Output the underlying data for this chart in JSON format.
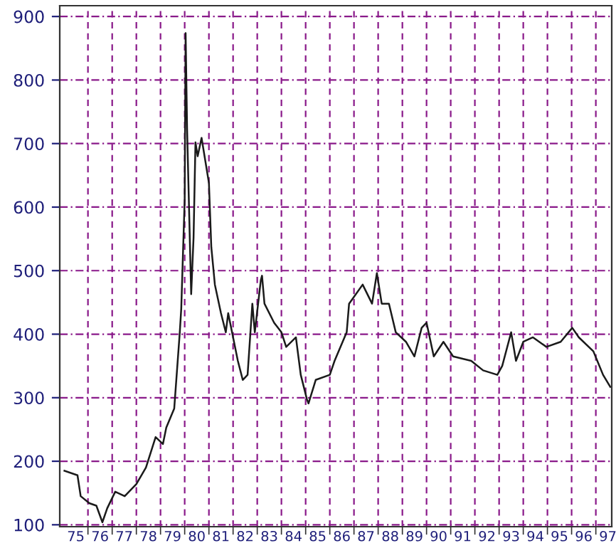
{
  "chart_data": {
    "type": "line",
    "grid": true,
    "marker": "none",
    "line_style": "solid",
    "xlim": [
      "1974-11-01",
      "1997-08-29"
    ],
    "ylim": [
      97,
      917
    ],
    "yticks": [
      100,
      200,
      300,
      400,
      500,
      600,
      700,
      800,
      900
    ],
    "xticks": [
      {
        "value": "1975-07-02",
        "label": "75"
      },
      {
        "value": "1976-07-02",
        "label": "76"
      },
      {
        "value": "1977-07-02",
        "label": "77"
      },
      {
        "value": "1978-07-02",
        "label": "78"
      },
      {
        "value": "1979-07-02",
        "label": "79"
      },
      {
        "value": "1980-07-02",
        "label": "80"
      },
      {
        "value": "1981-07-02",
        "label": "81"
      },
      {
        "value": "1982-07-02",
        "label": "82"
      },
      {
        "value": "1983-07-02",
        "label": "83"
      },
      {
        "value": "1984-07-02",
        "label": "84"
      },
      {
        "value": "1985-07-02",
        "label": "85"
      },
      {
        "value": "1986-07-02",
        "label": "86"
      },
      {
        "value": "1987-07-02",
        "label": "87"
      },
      {
        "value": "1988-07-02",
        "label": "88"
      },
      {
        "value": "1989-07-02",
        "label": "89"
      },
      {
        "value": "1990-07-02",
        "label": "90"
      },
      {
        "value": "1991-07-02",
        "label": "91"
      },
      {
        "value": "1992-07-02",
        "label": "92"
      },
      {
        "value": "1993-07-02",
        "label": "93"
      },
      {
        "value": "1994-07-02",
        "label": "94"
      },
      {
        "value": "1995-07-02",
        "label": "95"
      },
      {
        "value": "1996-07-02",
        "label": "96"
      },
      {
        "value": "1997-07-02",
        "label": "97"
      },
      {
        "value": "1976",
        "label": null
      },
      {
        "value": "1977",
        "label": null
      },
      {
        "value": "1978",
        "label": null
      },
      {
        "value": "1979",
        "label": null
      },
      {
        "value": "1980",
        "label": null
      },
      {
        "value": "1981",
        "label": null
      },
      {
        "value": "1982",
        "label": null
      },
      {
        "value": "1983",
        "label": null
      },
      {
        "value": "1984",
        "label": null
      },
      {
        "value": "1985",
        "label": null
      },
      {
        "value": "1986",
        "label": null
      },
      {
        "value": "1987",
        "label": null
      },
      {
        "value": "1988",
        "label": null
      },
      {
        "value": "1989",
        "label": null
      },
      {
        "value": "1990",
        "label": null
      },
      {
        "value": "1991",
        "label": null
      },
      {
        "value": "1992",
        "label": null
      },
      {
        "value": "1993",
        "label": null
      },
      {
        "value": "1994",
        "label": null
      },
      {
        "value": "1995",
        "label": null
      },
      {
        "value": "1996",
        "label": null
      },
      {
        "value": "1997",
        "label": null
      }
    ],
    "series": [
      {
        "color": "#1a1a1a",
        "x": [
          "1975-01-11",
          "1975-07-27",
          "1975-09-13",
          "1976-01-22",
          "1976-05-07",
          "1976-08-06",
          "1976-10-18",
          "1977-02-16",
          "1977-07-09",
          "1978-01-01",
          "1978-05-26",
          "1978-10-19",
          "1979-02-06",
          "1979-03-29",
          "1979-07-27",
          "1979-10-19",
          "1979-11-10",
          "1980-01-01",
          "1980-01-15",
          "1980-02-06",
          "1980-04-08",
          "1980-05-14",
          "1980-06-12",
          "1980-07-15",
          "1980-09-12",
          "1981-01-01",
          "1981-02-06",
          "1981-04-01",
          "1981-07-02",
          "1981-09-13",
          "1981-10-19",
          "1982-03-14",
          "1982-05-27",
          "1982-08-08",
          "1982-10-19",
          "1982-11-25",
          "1983-02-24",
          "1983-03-14",
          "1983-04-20",
          "1983-09-13",
          "1984-01-01",
          "1984-03-13",
          "1984-08-07",
          "1984-10-19",
          "1985-01-19",
          "1985-02-13",
          "1985-06-02",
          "1986-01-01",
          "1986-03-14",
          "1986-09-13",
          "1986-10-19",
          "1987-05-12",
          "1987-10-01",
          "1987-12-13",
          "1988-02-24",
          "1988-06-12",
          "1988-09-23",
          "1989-02-24",
          "1989-07-02",
          "1989-10-19",
          "1990-01-01",
          "1990-04-20",
          "1990-09-13",
          "1991-02-06",
          "1991-11-07",
          "1992-05-04",
          "1992-12-05",
          "1993-02-17",
          "1993-07-02",
          "1993-09-13",
          "1994-01-01",
          "1994-05-27",
          "1994-12-16",
          "1995-07-20",
          "1996-01-11",
          "1996-04-19",
          "1996-11-25",
          "1997-04-20",
          "1997-08-07"
        ],
        "values": [
          185,
          178,
          145,
          134,
          130,
          104,
          126,
          152,
          145,
          164,
          190,
          238,
          227,
          253,
          283,
          403,
          440,
          612,
          874,
          724,
          463,
          552,
          702,
          680,
          709,
          638,
          537,
          478,
          433,
          403,
          433,
          358,
          328,
          336,
          448,
          403,
          485,
          492,
          448,
          418,
          403,
          380,
          395,
          336,
          298,
          291,
          328,
          336,
          358,
          403,
          448,
          478,
          448,
          496,
          448,
          448,
          403,
          388,
          365,
          410,
          418,
          365,
          388,
          365,
          358,
          343,
          336,
          350,
          403,
          358,
          388,
          395,
          380,
          388,
          410,
          395,
          373,
          336,
          317
        ]
      }
    ]
  }
}
